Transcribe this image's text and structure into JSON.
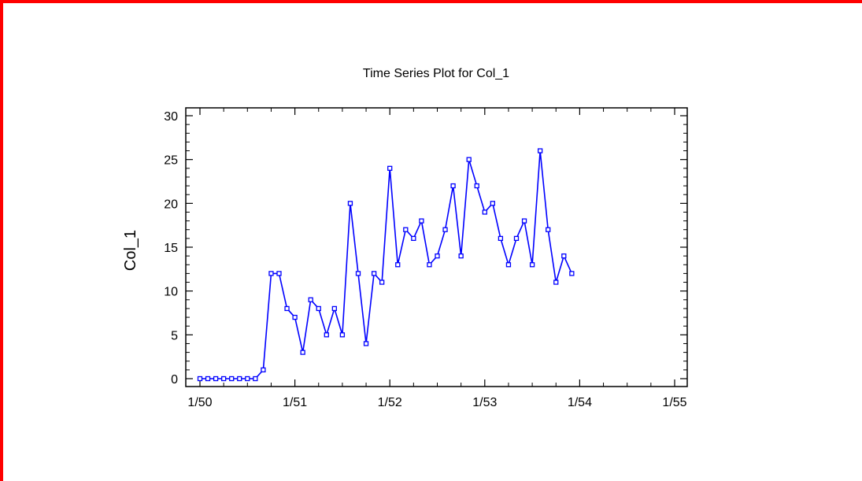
{
  "chart_data": {
    "type": "line",
    "title": "Time Series Plot for Col_1",
    "xlabel": "",
    "ylabel": "Col_1",
    "x_start": "1/50",
    "x_frequency": "monthly",
    "x_ticks": [
      "1/50",
      "1/51",
      "1/52",
      "1/53",
      "1/54",
      "1/55"
    ],
    "y_ticks": [
      0,
      5,
      10,
      15,
      20,
      25,
      30
    ],
    "ylim": [
      0,
      30
    ],
    "grid": false,
    "series": [
      {
        "values": [
          0,
          0,
          0,
          0,
          0,
          0,
          0,
          0,
          1,
          12,
          12,
          8,
          7,
          3,
          9,
          8,
          5,
          8,
          5,
          20,
          12,
          4,
          12,
          11,
          24,
          13,
          17,
          16,
          18,
          13,
          14,
          17,
          22,
          14,
          25,
          22,
          19,
          20,
          16,
          13,
          16,
          18,
          13,
          26,
          17,
          11,
          14,
          12
        ]
      }
    ],
    "line_color": "#0000ff",
    "border_color": "#ff0000"
  }
}
